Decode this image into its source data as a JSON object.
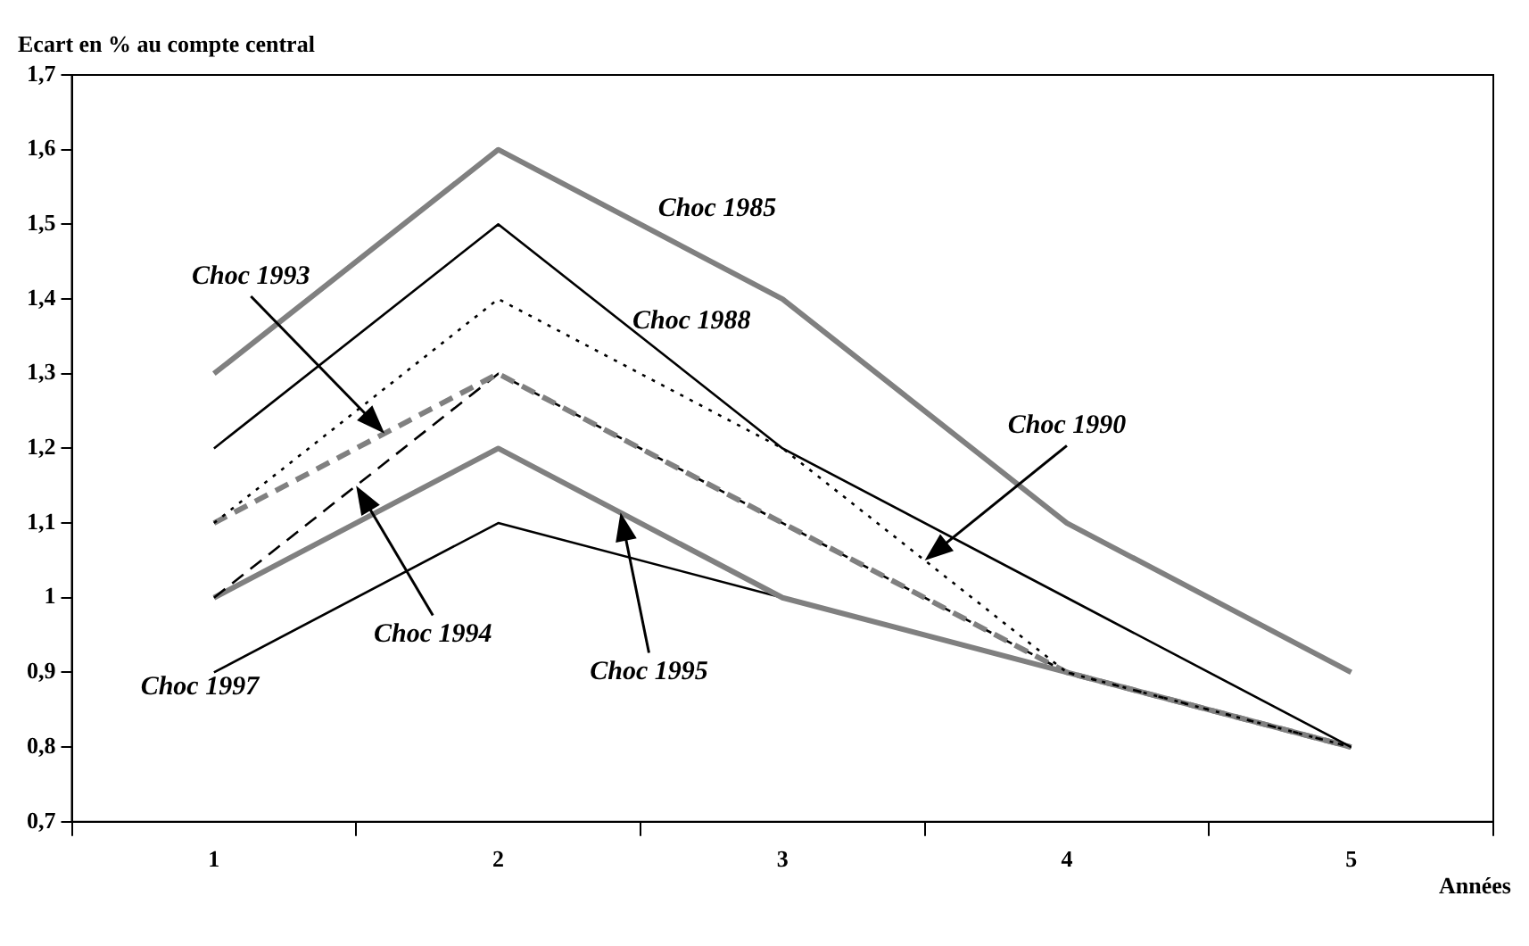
{
  "chart_data": {
    "type": "line",
    "ylabel": "Ecart en % au compte central",
    "xlabel": "Années",
    "categories": [
      "1",
      "2",
      "3",
      "4",
      "5"
    ],
    "ylim": [
      0.7,
      1.7
    ],
    "yticks": [
      {
        "value": 0.7,
        "label": "0,7"
      },
      {
        "value": 0.8,
        "label": "0,8"
      },
      {
        "value": 0.9,
        "label": "0,9"
      },
      {
        "value": 1,
        "label": "1"
      },
      {
        "value": 1.1,
        "label": "1,1"
      },
      {
        "value": 1.2,
        "label": "1,2"
      },
      {
        "value": 1.3,
        "label": "1,3"
      },
      {
        "value": 1.4,
        "label": "1,4"
      },
      {
        "value": 1.5,
        "label": "1,5"
      },
      {
        "value": 1.6,
        "label": "1,6"
      },
      {
        "value": 1.7,
        "label": "1,7"
      }
    ],
    "annotations": [
      "Choc 1990",
      "Choc 1994",
      "Choc 1995"
    ],
    "grid": false,
    "legend": false,
    "marker": "none",
    "series": [
      {
        "name": "Choc 1985",
        "color": "#808080",
        "line_style": "solid",
        "values": [
          1.3,
          1.6,
          1.4,
          1.1,
          0.9
        ]
      },
      {
        "name": "Choc 1988",
        "color": "#000000",
        "line_style": "solid",
        "values": [
          1.2,
          1.5,
          1.2,
          1.0,
          0.8
        ]
      },
      {
        "color": "#000000",
        "line_style": "dotted",
        "values": [
          1.1,
          1.4,
          1.2,
          0.9,
          0.8
        ]
      },
      {
        "name": "Choc 1993",
        "color": "#808080",
        "line_style": "dashed",
        "values": [
          1.1,
          1.3,
          1.1,
          0.9,
          0.8
        ]
      },
      {
        "color": "#000000",
        "line_style": "dashed",
        "values": [
          1.0,
          1.3,
          1.1,
          0.9,
          0.8
        ]
      },
      {
        "color": "#808080",
        "line_style": "solid",
        "values": [
          1.0,
          1.2,
          1.0,
          0.9,
          0.8
        ]
      },
      {
        "name": "Choc 1997",
        "color": "#000000",
        "line_style": "solid",
        "values": [
          0.9,
          1.1,
          1.0,
          0.9,
          0.8
        ]
      }
    ]
  }
}
